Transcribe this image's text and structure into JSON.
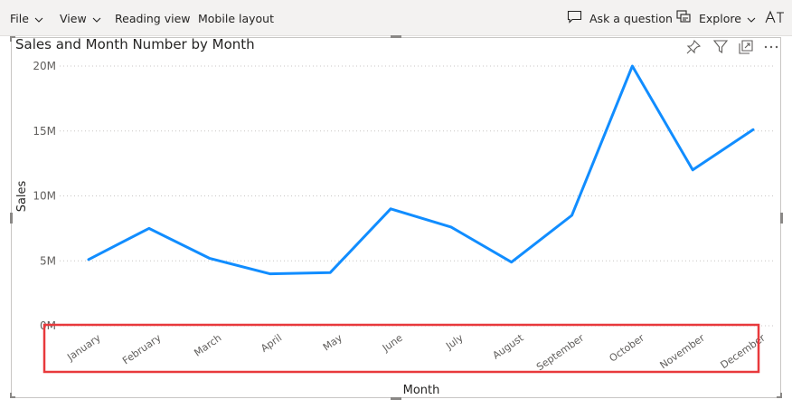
{
  "toolbar": {
    "file": "File",
    "view": "View",
    "reading_view": "Reading view",
    "mobile_layout": "Mobile layout",
    "ask_question": "Ask a question",
    "explore": "Explore",
    "text_icon": "text-size-icon"
  },
  "visual": {
    "title": "Sales and Month Number by Month",
    "header_icons": [
      "pin-icon",
      "filter-icon",
      "focus-mode-icon",
      "more-options-icon"
    ]
  },
  "highlight_color": "#e8393c",
  "line_color": "#118dff",
  "chart_data": {
    "type": "line",
    "title": "Sales and Month Number by Month",
    "xlabel": "Month",
    "ylabel": "Sales",
    "categories": [
      "January",
      "February",
      "March",
      "April",
      "May",
      "June",
      "July",
      "August",
      "September",
      "October",
      "November",
      "December"
    ],
    "series": [
      {
        "values": [
          5100000,
          7500000,
          5200000,
          4000000,
          4100000,
          9000000,
          7600000,
          4900000,
          8500000,
          20000000,
          12000000,
          15100000
        ]
      }
    ],
    "y_ticks": [
      "0M",
      "5M",
      "10M",
      "15M",
      "20M"
    ],
    "ylim": [
      0,
      20000000
    ],
    "grid": "horizontal dotted"
  }
}
